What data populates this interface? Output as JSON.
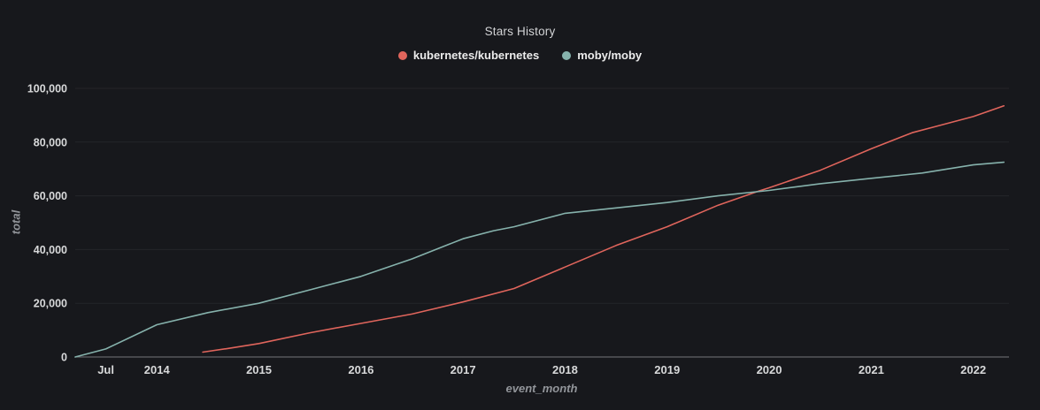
{
  "colors": {
    "background": "#17181c",
    "grid": "#242529",
    "axis": "#74767a",
    "tick_text": "#d8d9da",
    "axis_title_text": "#92959a",
    "kubernetes_line": "#e0655c",
    "moby_line": "#86b2ac"
  },
  "chart_data": {
    "type": "line",
    "title": "Stars History",
    "xlabel": "event_month",
    "ylabel": "total",
    "grid": "horizontal-only",
    "legend_position": "top-center",
    "xlim": [
      2013.2,
      2022.35
    ],
    "ylim": [
      0,
      100000
    ],
    "yticks": [
      0,
      20000,
      40000,
      60000,
      80000,
      100000
    ],
    "ytick_labels": [
      "0",
      "20,000",
      "40,000",
      "60,000",
      "80,000",
      "100,000"
    ],
    "xticks": [
      2013.5,
      2014,
      2015,
      2016,
      2017,
      2018,
      2019,
      2020,
      2021,
      2022
    ],
    "xtick_labels": [
      "Jul",
      "2014",
      "2015",
      "2016",
      "2017",
      "2018",
      "2019",
      "2020",
      "2021",
      "2022"
    ],
    "series": [
      {
        "name": "kubernetes/kubernetes",
        "color": "#e0655c",
        "x": [
          2014.45,
          2014.7,
          2015.0,
          2015.5,
          2016.0,
          2016.5,
          2017.0,
          2017.5,
          2018.0,
          2018.5,
          2019.0,
          2019.5,
          2019.9,
          2020.0,
          2020.5,
          2021.0,
          2021.4,
          2021.6,
          2022.0,
          2022.3
        ],
        "y": [
          1800,
          3200,
          5000,
          9000,
          12500,
          16000,
          20500,
          25500,
          33500,
          41500,
          48500,
          56500,
          61800,
          63000,
          69500,
          77500,
          83500,
          85500,
          89500,
          93500
        ]
      },
      {
        "name": "moby/moby",
        "color": "#86b2ac",
        "x": [
          2013.2,
          2013.5,
          2014.0,
          2014.5,
          2015.0,
          2015.5,
          2016.0,
          2016.5,
          2017.0,
          2017.3,
          2017.5,
          2018.0,
          2018.5,
          2019.0,
          2019.5,
          2020.0,
          2020.5,
          2021.0,
          2021.5,
          2022.0,
          2022.3
        ],
        "y": [
          0,
          3000,
          12000,
          16500,
          20000,
          25000,
          30000,
          36500,
          44000,
          47000,
          48500,
          53500,
          55500,
          57500,
          60000,
          62000,
          64500,
          66500,
          68500,
          71500,
          72500
        ]
      }
    ]
  }
}
